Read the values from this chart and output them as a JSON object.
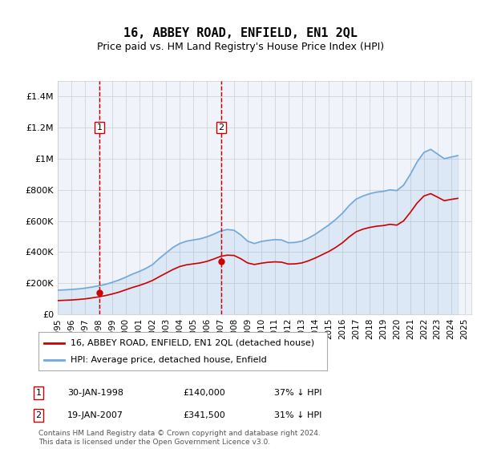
{
  "title": "16, ABBEY ROAD, ENFIELD, EN1 2QL",
  "subtitle": "Price paid vs. HM Land Registry's House Price Index (HPI)",
  "hpi_label": "HPI: Average price, detached house, Enfield",
  "price_label": "16, ABBEY ROAD, ENFIELD, EN1 2QL (detached house)",
  "hpi_color": "#6fa8dc",
  "price_color": "#cc0000",
  "dashed_color": "#cc0000",
  "background_color": "#dce9f7",
  "plot_bg": "#ffffff",
  "grid_color": "#cccccc",
  "sale1_x": 1998.08,
  "sale1_y": 140000,
  "sale1_label": "1",
  "sale1_date": "30-JAN-1998",
  "sale1_price": "£140,000",
  "sale1_pct": "37% ↓ HPI",
  "sale2_x": 2007.05,
  "sale2_y": 341500,
  "sale2_label": "2",
  "sale2_date": "19-JAN-2007",
  "sale2_price": "£341,500",
  "sale2_pct": "31% ↓ HPI",
  "xmin": 1995,
  "xmax": 2025.5,
  "ymin": 0,
  "ymax": 1500000,
  "yticks": [
    0,
    200000,
    400000,
    600000,
    800000,
    1000000,
    1200000,
    1400000
  ],
  "ytick_labels": [
    "£0",
    "£200K",
    "£400K",
    "£600K",
    "£800K",
    "£1M",
    "£1.2M",
    "£1.4M"
  ],
  "footer": "Contains HM Land Registry data © Crown copyright and database right 2024.\nThis data is licensed under the Open Government Licence v3.0.",
  "hpi_data_x": [
    1995,
    1995.5,
    1996,
    1996.5,
    1997,
    1997.5,
    1998,
    1998.5,
    1999,
    1999.5,
    2000,
    2000.5,
    2001,
    2001.5,
    2002,
    2002.5,
    2003,
    2003.5,
    2004,
    2004.5,
    2005,
    2005.5,
    2006,
    2006.5,
    2007,
    2007.5,
    2008,
    2008.5,
    2009,
    2009.5,
    2010,
    2010.5,
    2011,
    2011.5,
    2012,
    2012.5,
    2013,
    2013.5,
    2014,
    2014.5,
    2015,
    2015.5,
    2016,
    2016.5,
    2017,
    2017.5,
    2018,
    2018.5,
    2019,
    2019.5,
    2020,
    2020.5,
    2021,
    2021.5,
    2022,
    2022.5,
    2023,
    2023.5,
    2024,
    2024.5
  ],
  "hpi_data_y": [
    155000,
    157000,
    160000,
    163000,
    168000,
    175000,
    183000,
    192000,
    205000,
    220000,
    238000,
    258000,
    275000,
    295000,
    320000,
    360000,
    395000,
    430000,
    455000,
    470000,
    478000,
    485000,
    498000,
    515000,
    535000,
    545000,
    540000,
    510000,
    470000,
    455000,
    468000,
    475000,
    480000,
    478000,
    460000,
    462000,
    470000,
    490000,
    515000,
    545000,
    575000,
    610000,
    650000,
    700000,
    740000,
    760000,
    775000,
    785000,
    790000,
    800000,
    795000,
    830000,
    900000,
    980000,
    1040000,
    1060000,
    1030000,
    1000000,
    1010000,
    1020000
  ],
  "price_data_x": [
    1995,
    1995.5,
    1996,
    1996.5,
    1997,
    1997.5,
    1998,
    1998.5,
    1999,
    1999.5,
    2000,
    2000.5,
    2001,
    2001.5,
    2002,
    2002.5,
    2003,
    2003.5,
    2004,
    2004.5,
    2005,
    2005.5,
    2006,
    2006.5,
    2007,
    2007.5,
    2008,
    2008.5,
    2009,
    2009.5,
    2010,
    2010.5,
    2011,
    2011.5,
    2012,
    2012.5,
    2013,
    2013.5,
    2014,
    2014.5,
    2015,
    2015.5,
    2016,
    2016.5,
    2017,
    2017.5,
    2018,
    2018.5,
    2019,
    2019.5,
    2020,
    2020.5,
    2021,
    2021.5,
    2022,
    2022.5,
    2023,
    2023.5,
    2024,
    2024.5
  ],
  "price_data_y": [
    88000,
    90000,
    92000,
    95000,
    99000,
    105000,
    112000,
    120000,
    130000,
    142000,
    157000,
    172000,
    185000,
    200000,
    218000,
    242000,
    265000,
    288000,
    307000,
    318000,
    324000,
    330000,
    340000,
    355000,
    372000,
    380000,
    378000,
    357000,
    330000,
    320000,
    328000,
    334000,
    337000,
    335000,
    323000,
    324000,
    330000,
    344000,
    362000,
    383000,
    404000,
    430000,
    460000,
    498000,
    530000,
    547000,
    558000,
    566000,
    570000,
    578000,
    573000,
    600000,
    655000,
    715000,
    760000,
    775000,
    753000,
    730000,
    738000,
    745000
  ],
  "xtick_years": [
    1995,
    1996,
    1997,
    1998,
    1999,
    2000,
    2001,
    2002,
    2003,
    2004,
    2005,
    2006,
    2007,
    2008,
    2009,
    2010,
    2011,
    2012,
    2013,
    2014,
    2015,
    2016,
    2017,
    2018,
    2019,
    2020,
    2021,
    2022,
    2023,
    2024,
    2025
  ]
}
